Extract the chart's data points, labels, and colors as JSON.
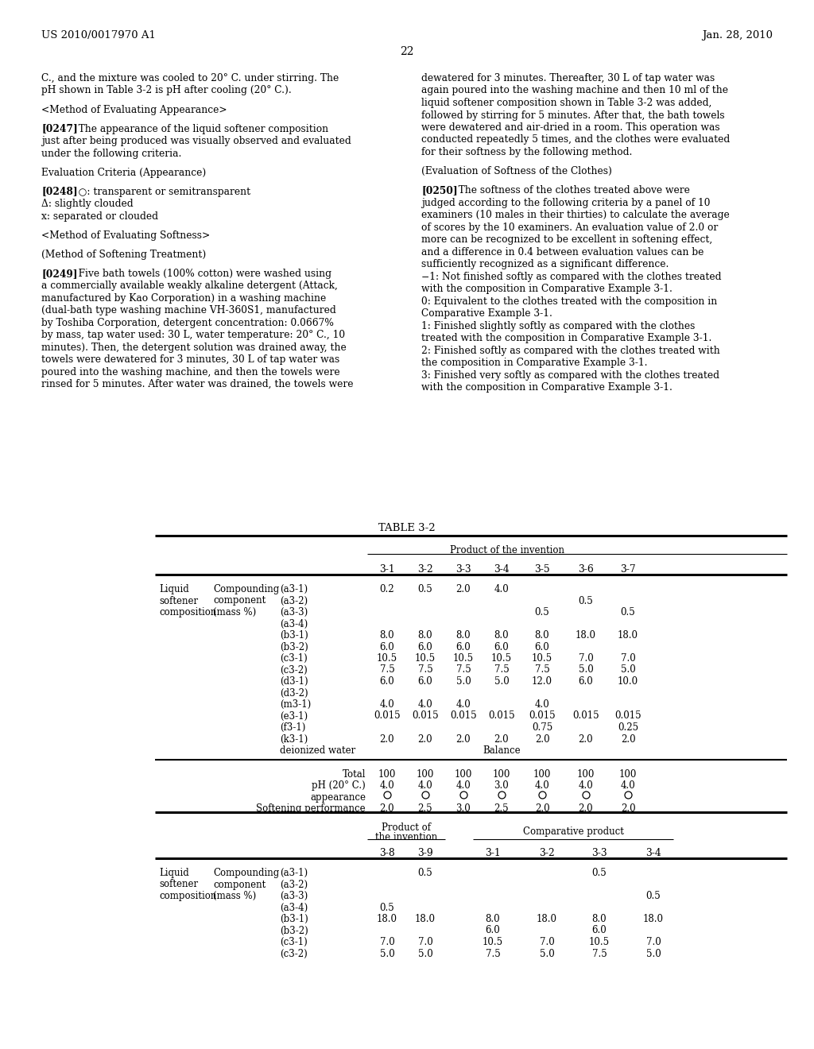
{
  "background_color": "#ffffff",
  "header_left": "US 2010/0017970 A1",
  "header_right": "Jan. 28, 2010",
  "page_number": "22",
  "left_column_text": [
    "C., and the mixture was cooled to 20° C. under stirring. The",
    "pH shown in Table 3-2 is pH after cooling (20° C.).",
    "",
    "<Method of Evaluating Appearance>",
    "",
    "[0247]   The appearance of the liquid softener composition",
    "just after being produced was visually observed and evaluated",
    "under the following criteria.",
    "",
    "Evaluation Criteria (Appearance)",
    "",
    "[0248]   ○: transparent or semitransparent",
    "Δ: slightly clouded",
    "x: separated or clouded",
    "",
    "<Method of Evaluating Softness>",
    "",
    "(Method of Softening Treatment)",
    "",
    "[0249]   Five bath towels (100% cotton) were washed using",
    "a commercially available weakly alkaline detergent (Attack,",
    "manufactured by Kao Corporation) in a washing machine",
    "(dual-bath type washing machine VH-360S1, manufactured",
    "by Toshiba Corporation, detergent concentration: 0.0667%",
    "by mass, tap water used: 30 L, water temperature: 20° C., 10",
    "minutes). Then, the detergent solution was drained away, the",
    "towels were dewatered for 3 minutes, 30 L of tap water was",
    "poured into the washing machine, and then the towels were",
    "rinsed for 5 minutes. After water was drained, the towels were"
  ],
  "right_column_text": [
    "dewatered for 3 minutes. Thereafter, 30 L of tap water was",
    "again poured into the washing machine and then 10 ml of the",
    "liquid softener composition shown in Table 3-2 was added,",
    "followed by stirring for 5 minutes. After that, the bath towels",
    "were dewatered and air-dried in a room. This operation was",
    "conducted repeatedly 5 times, and the clothes were evaluated",
    "for their softness by the following method.",
    "",
    "(Evaluation of Softness of the Clothes)",
    "",
    "[0250]   The softness of the clothes treated above were",
    "judged according to the following criteria by a panel of 10",
    "examiners (10 males in their thirties) to calculate the average",
    "of scores by the 10 examiners. An evaluation value of 2.0 or",
    "more can be recognized to be excellent in softening effect,",
    "and a difference in 0.4 between evaluation values can be",
    "sufficiently recognized as a significant difference.",
    "−1: Not finished softly as compared with the clothes treated",
    "with the composition in Comparative Example 3-1.",
    "0: Equivalent to the clothes treated with the composition in",
    "Comparative Example 3-1.",
    "1: Finished slightly softly as compared with the clothes",
    "treated with the composition in Comparative Example 3-1.",
    "2: Finished softly as compared with the clothes treated with",
    "the composition in Comparative Example 3-1.",
    "3: Finished very softly as compared with the clothes treated",
    "with the composition in Comparative Example 3-1."
  ],
  "table_title": "TABLE 3-2",
  "table1_columns": [
    "3-1",
    "3-2",
    "3-3",
    "3-4",
    "3-5",
    "3-6",
    "3-7"
  ],
  "table1_row_labels": [
    "(a3-1)",
    "(a3-2)",
    "(a3-3)",
    "(a3-4)",
    "(b3-1)",
    "(b3-2)",
    "(c3-1)",
    "(c3-2)",
    "(d3-1)",
    "(d3-2)",
    "(m3-1)",
    "(e3-1)",
    "(f3-1)",
    "(k3-1)",
    "deionized water"
  ],
  "table1_data": [
    [
      "0.2",
      "0.5",
      "2.0",
      "4.0",
      "",
      "",
      ""
    ],
    [
      "",
      "",
      "",
      "",
      "",
      "0.5",
      ""
    ],
    [
      "",
      "",
      "",
      "",
      "0.5",
      "",
      "0.5"
    ],
    [
      "",
      "",
      "",
      "",
      "",
      "",
      ""
    ],
    [
      "8.0",
      "8.0",
      "8.0",
      "8.0",
      "8.0",
      "18.0",
      "18.0"
    ],
    [
      "6.0",
      "6.0",
      "6.0",
      "6.0",
      "6.0",
      "",
      ""
    ],
    [
      "10.5",
      "10.5",
      "10.5",
      "10.5",
      "10.5",
      "7.0",
      "7.0"
    ],
    [
      "7.5",
      "7.5",
      "7.5",
      "7.5",
      "7.5",
      "5.0",
      "5.0"
    ],
    [
      "6.0",
      "6.0",
      "5.0",
      "5.0",
      "12.0",
      "6.0",
      "10.0"
    ],
    [
      "",
      "",
      "",
      "",
      "",
      "",
      ""
    ],
    [
      "4.0",
      "4.0",
      "4.0",
      "",
      "4.0",
      "",
      ""
    ],
    [
      "0.015",
      "0.015",
      "0.015",
      "0.015",
      "0.015",
      "0.015",
      "0.015"
    ],
    [
      "",
      "",
      "",
      "",
      "0.75",
      "",
      "0.25"
    ],
    [
      "2.0",
      "2.0",
      "2.0",
      "2.0",
      "2.0",
      "2.0",
      "2.0"
    ],
    [
      "",
      "",
      "",
      "Balance",
      "",
      "",
      ""
    ]
  ],
  "table1_total": [
    "100",
    "100",
    "100",
    "100",
    "100",
    "100",
    "100"
  ],
  "table1_ph": [
    "4.0",
    "4.0",
    "4.0",
    "3.0",
    "4.0",
    "4.0",
    "4.0"
  ],
  "table1_appearance": [
    "○",
    "○",
    "○",
    "○",
    "○",
    "○",
    "○"
  ],
  "table1_softening": [
    "2.0",
    "2.5",
    "3.0",
    "2.5",
    "2.0",
    "2.0",
    "2.0"
  ],
  "table2_columns": [
    "3-8",
    "3-9",
    "3-1",
    "3-2",
    "3-3",
    "3-4"
  ],
  "table2_row_labels": [
    "(a3-1)",
    "(a3-2)",
    "(a3-3)",
    "(a3-4)",
    "(b3-1)",
    "(b3-2)",
    "(c3-1)",
    "(c3-2)"
  ],
  "table2_data": [
    [
      "",
      "0.5",
      "",
      "",
      "0.5",
      ""
    ],
    [
      "",
      "",
      "",
      "",
      "",
      ""
    ],
    [
      "",
      "",
      "",
      "",
      "",
      "0.5"
    ],
    [
      "0.5",
      "",
      "",
      "",
      "",
      ""
    ],
    [
      "18.0",
      "18.0",
      "8.0",
      "18.0",
      "8.0",
      "18.0"
    ],
    [
      "",
      "",
      "6.0",
      "",
      "6.0",
      ""
    ],
    [
      "7.0",
      "7.0",
      "10.5",
      "7.0",
      "10.5",
      "7.0"
    ],
    [
      "5.0",
      "5.0",
      "7.5",
      "5.0",
      "7.5",
      "5.0"
    ]
  ]
}
